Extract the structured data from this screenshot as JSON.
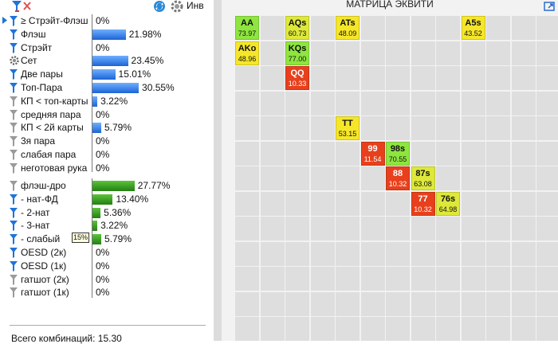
{
  "toolbar": {
    "inv_label": "Инв"
  },
  "stats": [
    {
      "label": "≥ Стрэйт-Флэш",
      "pct": "0%",
      "value": 0,
      "icon": "filter-blue-icon"
    },
    {
      "label": "Флэш",
      "pct": "21.98%",
      "value": 21.98,
      "icon": "filter-blue-icon"
    },
    {
      "label": "Стрэйт",
      "pct": "0%",
      "value": 0,
      "icon": "filter-blue-icon"
    },
    {
      "label": "Сет",
      "pct": "23.45%",
      "value": 23.45,
      "icon": "gear-icon"
    },
    {
      "label": "Две пары",
      "pct": "15.01%",
      "value": 15.01,
      "icon": "filter-blue-icon"
    },
    {
      "label": "Топ-Пара",
      "pct": "30.55%",
      "value": 30.55,
      "icon": "filter-blue-icon"
    },
    {
      "label": "КП < топ-карты",
      "pct": "3.22%",
      "value": 3.22,
      "icon": "filter-gray-icon"
    },
    {
      "label": "средняя пара",
      "pct": "0%",
      "value": 0,
      "icon": "filter-gray-icon"
    },
    {
      "label": "КП < 2й карты",
      "pct": "5.79%",
      "value": 5.79,
      "icon": "filter-gray-icon"
    },
    {
      "label": "3я пара",
      "pct": "0%",
      "value": 0,
      "icon": "filter-gray-icon"
    },
    {
      "label": "слабая пара",
      "pct": "0%",
      "value": 0,
      "icon": "filter-gray-icon"
    },
    {
      "label": "неготовая рука",
      "pct": "0%",
      "value": 0,
      "icon": "filter-gray-icon"
    }
  ],
  "draws": [
    {
      "label": "флэш-дро",
      "pct": "27.77%",
      "value": 27.77,
      "icon": "filter-gray-icon"
    },
    {
      "label": "- нат-ФД",
      "pct": "13.40%",
      "value": 13.4,
      "icon": "filter-blue-icon"
    },
    {
      "label": "- 2-нат",
      "pct": "5.36%",
      "value": 5.36,
      "icon": "filter-blue-icon"
    },
    {
      "label": "- 3-нат",
      "pct": "3.22%",
      "value": 3.22,
      "icon": "filter-blue-icon"
    },
    {
      "label": "- слабый",
      "pct": "5.79%",
      "value": 5.79,
      "icon": "filter-blue-icon"
    },
    {
      "label": "OESD (2к)",
      "pct": "0%",
      "value": 0,
      "icon": "filter-blue-icon"
    },
    {
      "label": "OESD (1к)",
      "pct": "0%",
      "value": 0,
      "icon": "filter-blue-icon"
    },
    {
      "label": "гатшот (2к)",
      "pct": "0%",
      "value": 0,
      "icon": "filter-gray-icon"
    },
    {
      "label": "гатшот (1к)",
      "pct": "0%",
      "value": 0,
      "icon": "filter-gray-icon"
    }
  ],
  "tooltip": "15%",
  "footer": "Всего комбинаций: 15.30",
  "matrix": {
    "title": "МАТРИЦА ЭКВИТИ",
    "hands": [
      {
        "hand": "AA",
        "equity": "73.97",
        "row": 0,
        "col": 0,
        "color": "#8ee53f"
      },
      {
        "hand": "AQs",
        "equity": "60.73",
        "row": 0,
        "col": 2,
        "color": "#dde83a"
      },
      {
        "hand": "ATs",
        "equity": "48.09",
        "row": 0,
        "col": 4,
        "color": "#f5e62a"
      },
      {
        "hand": "A5s",
        "equity": "43.52",
        "row": 0,
        "col": 9,
        "color": "#f5e62a"
      },
      {
        "hand": "AKo",
        "equity": "48.96",
        "row": 1,
        "col": 0,
        "color": "#f5e62a"
      },
      {
        "hand": "KQs",
        "equity": "77.00",
        "row": 1,
        "col": 2,
        "color": "#8ee53f"
      },
      {
        "hand": "QQ",
        "equity": "10.33",
        "row": 2,
        "col": 2,
        "color": "#e8401c"
      },
      {
        "hand": "TT",
        "equity": "53.15",
        "row": 4,
        "col": 4,
        "color": "#f5e62a"
      },
      {
        "hand": "99",
        "equity": "11.54",
        "row": 5,
        "col": 5,
        "color": "#e8401c"
      },
      {
        "hand": "98s",
        "equity": "70.55",
        "row": 5,
        "col": 6,
        "color": "#8ee53f"
      },
      {
        "hand": "88",
        "equity": "10.32",
        "row": 6,
        "col": 6,
        "color": "#e8401c"
      },
      {
        "hand": "87s",
        "equity": "63.08",
        "row": 6,
        "col": 7,
        "color": "#dde83a"
      },
      {
        "hand": "77",
        "equity": "10.32",
        "row": 7,
        "col": 7,
        "color": "#e8401c"
      },
      {
        "hand": "76s",
        "equity": "64.98",
        "row": 7,
        "col": 8,
        "color": "#dde83a"
      }
    ]
  }
}
